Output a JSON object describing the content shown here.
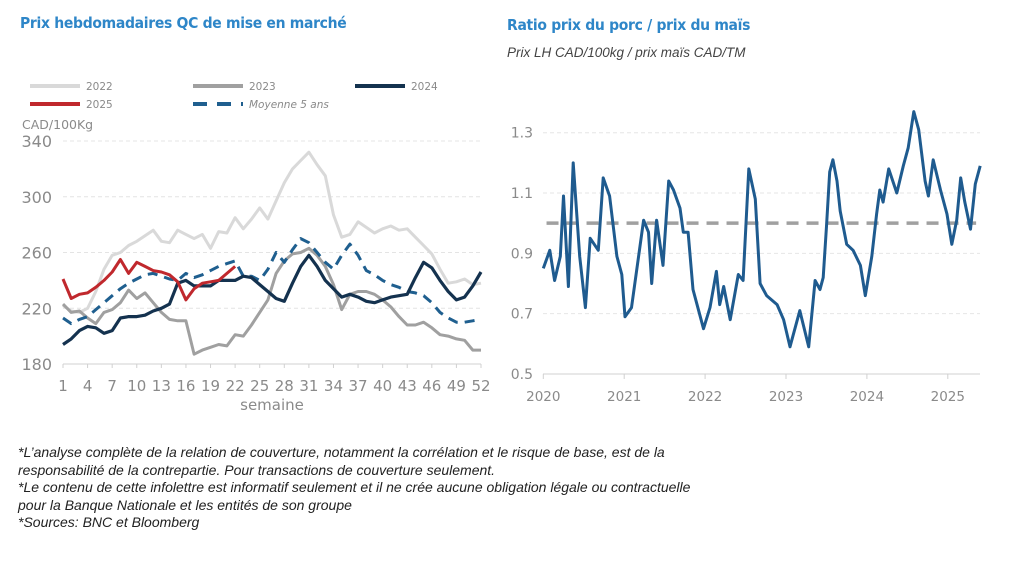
{
  "footnotes": [
    "*L’analyse complète de la relation de couverture, notamment la corrélation et le risque de base, est de la",
    "responsabilité de la contrepartie. Pour transactions de couverture seulement.",
    "*Le contenu de cette infolettre est informatif seulement et il ne crée aucune obligation légale ou contractuelle",
    "pour la Banque Nationale et les entités de son groupe",
    "*Sources: BNC et Bloomberg"
  ],
  "colors": {
    "title": "#2e86c8",
    "s2022": "#d9d9d9",
    "s2023": "#a0a0a0",
    "s2024": "#14324f",
    "s2025": "#c0282d",
    "avg": "#1f5f8f",
    "ratio": "#1f5b8f",
    "ref": "#a0a0a0"
  },
  "chart_data": [
    {
      "type": "line",
      "title": "Prix hebdomadaires QC de mise en marché",
      "ylabel": "CAD/100Kg",
      "xlabel": "semaine",
      "ylim": [
        180,
        340
      ],
      "yticks": [
        "340",
        "300",
        "260",
        "220",
        "180"
      ],
      "xticks": [
        "1",
        "4",
        "7",
        "10",
        "13",
        "16",
        "19",
        "22",
        "25",
        "28",
        "31",
        "34",
        "37",
        "40",
        "43",
        "46",
        "49",
        "52"
      ],
      "grid": true,
      "legend": "top",
      "series": [
        {
          "name": "2022",
          "style": "solid",
          "values": [
            222,
            218,
            217,
            220,
            232,
            248,
            258,
            260,
            265,
            268,
            272,
            276,
            268,
            267,
            276,
            273,
            270,
            273,
            263,
            275,
            274,
            285,
            277,
            284,
            292,
            284,
            297,
            310,
            320,
            326,
            332,
            323,
            315,
            287,
            271,
            273,
            282,
            278,
            274,
            277,
            279,
            276,
            277,
            271,
            265,
            259,
            248,
            238,
            239,
            241,
            237,
            238
          ]
        },
        {
          "name": "2023",
          "style": "solid",
          "values": [
            223,
            217,
            218,
            213,
            209,
            217,
            219,
            224,
            233,
            227,
            231,
            224,
            217,
            212,
            211,
            211,
            187,
            190,
            192,
            194,
            193,
            201,
            200,
            208,
            217,
            226,
            245,
            254,
            259,
            260,
            263,
            258,
            250,
            237,
            219,
            230,
            232,
            232,
            230,
            226,
            221,
            214,
            208,
            208,
            210,
            206,
            201,
            200,
            198,
            197,
            190,
            190
          ]
        },
        {
          "name": "2024",
          "style": "solid",
          "values": [
            194,
            198,
            204,
            207,
            206,
            202,
            204,
            213,
            214,
            214,
            215,
            218,
            220,
            223,
            238,
            240,
            236,
            236,
            236,
            240,
            240,
            240,
            243,
            242,
            237,
            232,
            227,
            225,
            238,
            250,
            258,
            250,
            240,
            234,
            228,
            230,
            228,
            225,
            224,
            226,
            228,
            229,
            230,
            242,
            253,
            249,
            240,
            232,
            226,
            228,
            236,
            246
          ]
        },
        {
          "name": "2025",
          "style": "solid",
          "values": [
            241,
            227,
            230,
            231,
            235,
            240,
            246,
            255,
            245,
            253,
            250,
            247,
            246,
            244,
            239,
            226,
            234,
            238,
            239,
            240,
            245,
            250
          ]
        },
        {
          "name": "Moyenne 5 ans",
          "style": "dashed",
          "values": [
            213,
            209,
            212,
            214,
            219,
            224,
            229,
            234,
            238,
            241,
            244,
            245,
            243,
            241,
            240,
            245,
            242,
            244,
            247,
            250,
            252,
            254,
            243,
            243,
            240,
            248,
            260,
            253,
            262,
            270,
            267,
            260,
            253,
            248,
            258,
            266,
            258,
            247,
            244,
            240,
            237,
            235,
            232,
            231,
            229,
            224,
            217,
            213,
            210,
            210,
            211,
            212
          ]
        }
      ]
    },
    {
      "type": "line",
      "title": "Ratio prix du porc / prix du maïs",
      "subtitle": "Prix LH CAD/100kg / prix maïs CAD/TM",
      "ylim": [
        0.5,
        1.4
      ],
      "yticks": [
        "1.3",
        "1.1",
        "0.9",
        "0.7",
        "0.5"
      ],
      "xticks": [
        "2020",
        "2021",
        "2022",
        "2023",
        "2024",
        "2025"
      ],
      "grid": true,
      "reference_line": 1.0,
      "series": [
        {
          "x": [
            2020.0,
            2020.08,
            2020.14,
            2020.21,
            2020.25,
            2020.31,
            2020.37,
            2020.45,
            2020.52,
            2020.58,
            2020.68,
            2020.74,
            2020.82,
            2020.91,
            2020.97,
            2021.01,
            2021.09,
            2021.24,
            2021.3,
            2021.34,
            2021.4,
            2021.48,
            2021.55,
            2021.61,
            2021.69,
            2021.73,
            2021.79,
            2021.85,
            2021.98,
            2022.06,
            2022.14,
            2022.18,
            2022.23,
            2022.31,
            2022.41,
            2022.47,
            2022.54,
            2022.62,
            2022.68,
            2022.76,
            2022.89,
            2022.97,
            2023.05,
            2023.17,
            2023.28,
            2023.36,
            2023.42,
            2023.46,
            2023.5,
            2023.54,
            2023.58,
            2023.63,
            2023.67,
            2023.75,
            2023.83,
            2023.92,
            2023.98,
            2024.06,
            2024.12,
            2024.16,
            2024.2,
            2024.27,
            2024.37,
            2024.45,
            2024.51,
            2024.58,
            2024.64,
            2024.72,
            2024.76,
            2024.82,
            2024.91,
            2024.99,
            2025.05,
            2025.11,
            2025.16,
            2025.21,
            2025.28,
            2025.34,
            2025.4
          ],
          "values": [
            0.85,
            0.91,
            0.81,
            0.89,
            1.09,
            0.79,
            1.2,
            0.89,
            0.72,
            0.95,
            0.91,
            1.15,
            1.09,
            0.89,
            0.83,
            0.69,
            0.72,
            1.01,
            0.97,
            0.8,
            1.01,
            0.86,
            1.14,
            1.11,
            1.05,
            0.97,
            0.97,
            0.78,
            0.65,
            0.72,
            0.84,
            0.73,
            0.79,
            0.68,
            0.83,
            0.81,
            1.18,
            1.08,
            0.8,
            0.76,
            0.73,
            0.68,
            0.59,
            0.71,
            0.59,
            0.81,
            0.78,
            0.82,
            0.99,
            1.17,
            1.21,
            1.14,
            1.04,
            0.93,
            0.91,
            0.86,
            0.76,
            0.89,
            1.03,
            1.11,
            1.07,
            1.18,
            1.1,
            1.19,
            1.25,
            1.37,
            1.31,
            1.14,
            1.09,
            1.21,
            1.11,
            1.03,
            0.93,
            1.01,
            1.15,
            1.07,
            0.98,
            1.13,
            1.19
          ]
        }
      ]
    }
  ]
}
